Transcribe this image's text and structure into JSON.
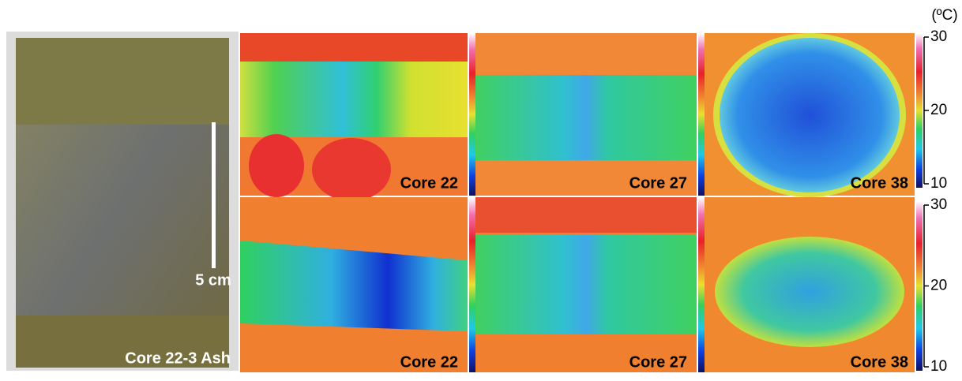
{
  "photo": {
    "label": "Core 22-3 Ash",
    "scale_label": "5 cm"
  },
  "panels": [
    [
      "Core 22",
      "Core 27",
      "Core 38"
    ],
    [
      "Core 22",
      "Core 27",
      "Core 38"
    ]
  ],
  "colorbar_unit": "(ºC)",
  "colorbars": [
    {
      "range": [
        10,
        30
      ],
      "ticks": [
        30,
        20,
        10
      ]
    },
    {
      "range": [
        10,
        30
      ],
      "ticks": [
        30,
        20,
        10
      ]
    }
  ]
}
